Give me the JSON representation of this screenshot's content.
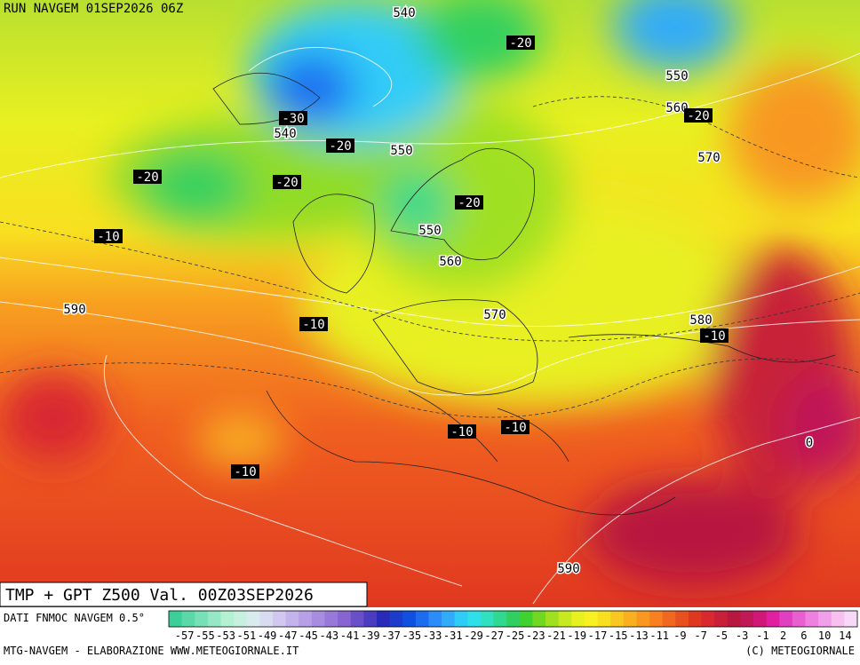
{
  "header": {
    "run": "RUN NAVGEM 01SEP2026 06Z"
  },
  "map": {
    "height_labels": [
      540,
      540,
      550,
      550,
      560,
      570,
      550,
      560,
      570,
      590,
      580,
      590
    ],
    "temperature_labels": [
      -20,
      -30,
      -20,
      -20,
      -20,
      -20,
      -20,
      -10,
      -10,
      -10,
      -10,
      -10,
      -10,
      0
    ]
  },
  "footer": {
    "title": "TMP + GPT Z500 Val. 00Z03SEP2026",
    "source": "DATI FNMOC NAVGEM 0.5°",
    "credit": "MTG-NAVGEM - ELABORAZIONE WWW.METEOGIORNALE.IT",
    "copyright": "(C) METEOGIORNALE"
  },
  "colorbar": {
    "ticks": [
      -57,
      -55,
      -53,
      -51,
      -49,
      -47,
      -45,
      -43,
      -41,
      -39,
      -37,
      -35,
      -33,
      -31,
      -29,
      -27,
      -25,
      -23,
      -21,
      -19,
      -17,
      -15,
      -13,
      -11,
      -9,
      -7,
      -5,
      -3,
      -1,
      2,
      6,
      10,
      14
    ],
    "colors": [
      "#3ccf9a",
      "#5ad8a8",
      "#78e0b6",
      "#96e8c4",
      "#b4f0d2",
      "#c8f0e0",
      "#d8ecf0",
      "#d8dcf0",
      "#d0c8f0",
      "#c4b4ec",
      "#b8a0e8",
      "#a88ce0",
      "#9878d8",
      "#8864d0",
      "#6a50c8",
      "#4c3cc0",
      "#2a2ab8",
      "#1c3ccc",
      "#1050e0",
      "#1c6cf0",
      "#2c8cf8",
      "#30acf8",
      "#30ccf8",
      "#30e0e8",
      "#30e0c0",
      "#30d890",
      "#30d060",
      "#40d030",
      "#70d820",
      "#a0e020",
      "#c8e820",
      "#e8f020",
      "#f8f020",
      "#f8e020",
      "#f8c820",
      "#f8b020",
      "#f89820",
      "#f88020",
      "#f06820",
      "#e85020",
      "#e03820",
      "#d82830",
      "#c82038",
      "#b81840",
      "#c01858",
      "#d01878",
      "#e020a0",
      "#e040c0",
      "#e860d0",
      "#f080e0",
      "#f0a0e8",
      "#f8c0f0",
      "#f8d8f8"
    ]
  }
}
